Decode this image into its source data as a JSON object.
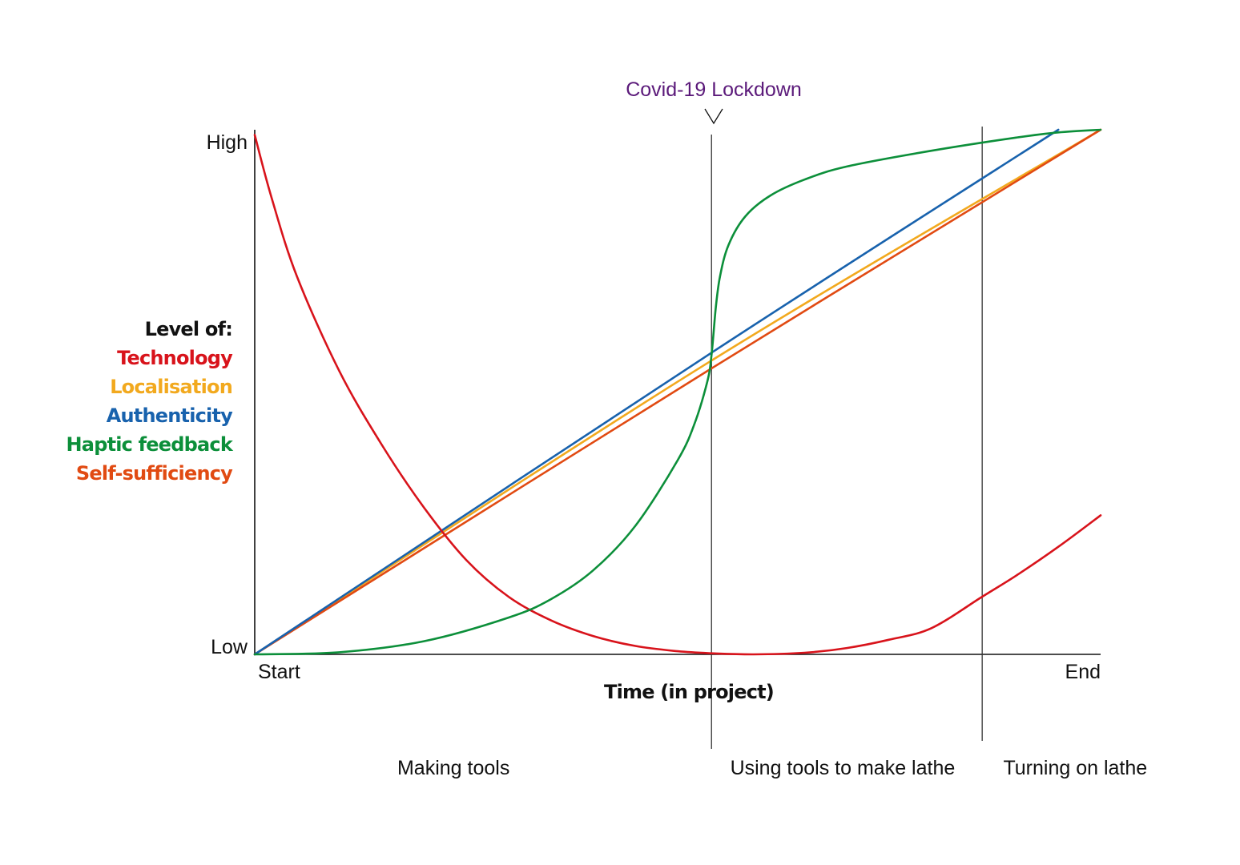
{
  "chart_data": {
    "type": "line",
    "title": "",
    "xlabel": "Time (in project)",
    "ylabel_heading": "Level of:",
    "x_tick_labels": {
      "start": "Start",
      "end": "End"
    },
    "y_tick_labels": {
      "low": "Low",
      "high": "High"
    },
    "xlim": [
      0,
      1
    ],
    "ylim": [
      0,
      1
    ],
    "grid": false,
    "event": {
      "label": "Covid-19 Lockdown",
      "x": 0.54,
      "color": "#5b1a7a"
    },
    "phase_boundaries": [
      0.54,
      0.86
    ],
    "phases": [
      {
        "label": "Making tools",
        "x_center": 0.235
      },
      {
        "label": "Using tools to make lathe",
        "x_center": 0.695
      },
      {
        "label": "Turning on lathe",
        "x_center": 0.97
      }
    ],
    "series": [
      {
        "name": "Technology",
        "color": "#d8131b",
        "points": [
          [
            0,
            0.99
          ],
          [
            0.02,
            0.87
          ],
          [
            0.05,
            0.72
          ],
          [
            0.1,
            0.54
          ],
          [
            0.15,
            0.4
          ],
          [
            0.2,
            0.28
          ],
          [
            0.25,
            0.18
          ],
          [
            0.3,
            0.11
          ],
          [
            0.35,
            0.065
          ],
          [
            0.4,
            0.035
          ],
          [
            0.45,
            0.016
          ],
          [
            0.5,
            0.006
          ],
          [
            0.54,
            0.002
          ],
          [
            0.59,
            0.0
          ],
          [
            0.65,
            0.003
          ],
          [
            0.7,
            0.012
          ],
          [
            0.75,
            0.028
          ],
          [
            0.8,
            0.05
          ],
          [
            0.86,
            0.11
          ],
          [
            0.9,
            0.15
          ],
          [
            0.95,
            0.205
          ],
          [
            1.0,
            0.265
          ]
        ]
      },
      {
        "name": "Localisation",
        "color": "#f2a91e",
        "points": [
          [
            0,
            0
          ],
          [
            0.54,
            0.56
          ],
          [
            1.0,
            1.0
          ]
        ]
      },
      {
        "name": "Authenticity",
        "color": "#1862ad",
        "points": [
          [
            0,
            0
          ],
          [
            0.54,
            0.575
          ],
          [
            0.95,
            1.0
          ]
        ]
      },
      {
        "name": "Haptic feedback",
        "color": "#0c8f3a",
        "points": [
          [
            0,
            0
          ],
          [
            0.1,
            0.004
          ],
          [
            0.2,
            0.025
          ],
          [
            0.3,
            0.07
          ],
          [
            0.35,
            0.105
          ],
          [
            0.4,
            0.16
          ],
          [
            0.45,
            0.245
          ],
          [
            0.5,
            0.37
          ],
          [
            0.52,
            0.44
          ],
          [
            0.535,
            0.52
          ],
          [
            0.54,
            0.57
          ],
          [
            0.545,
            0.66
          ],
          [
            0.55,
            0.72
          ],
          [
            0.56,
            0.78
          ],
          [
            0.58,
            0.835
          ],
          [
            0.61,
            0.875
          ],
          [
            0.65,
            0.905
          ],
          [
            0.7,
            0.93
          ],
          [
            0.8,
            0.96
          ],
          [
            0.9,
            0.985
          ],
          [
            0.95,
            0.995
          ],
          [
            1.0,
            1.0
          ]
        ]
      },
      {
        "name": "Self-sufficiency",
        "color": "#e14a12",
        "points": [
          [
            0,
            0
          ],
          [
            0.54,
            0.545
          ],
          [
            1.0,
            1.0
          ]
        ]
      }
    ]
  }
}
